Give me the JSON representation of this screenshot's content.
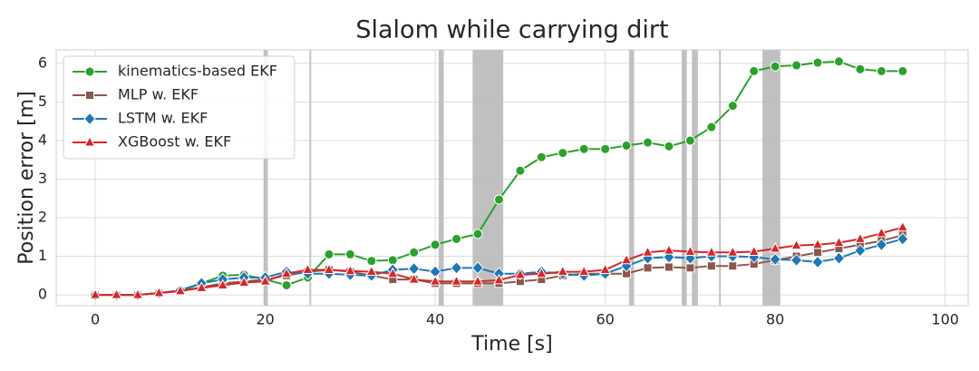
{
  "chart_data": {
    "type": "line",
    "title": "Slalom while carrying dirt",
    "xlabel": "Time [s]",
    "ylabel": "Position error [m]",
    "x": [
      0,
      2.5,
      5,
      7.5,
      10,
      12.5,
      15,
      17.5,
      20,
      22.5,
      25,
      27.5,
      30,
      32.5,
      35,
      37.5,
      40,
      42.5,
      45,
      47.5,
      50,
      52.5,
      55,
      57.5,
      60,
      62.5,
      65,
      67.5,
      70,
      72.5,
      75,
      77.5,
      80,
      82.5,
      85,
      87.5,
      90,
      92.5,
      95
    ],
    "series": [
      {
        "name": "kinematics-based EKF",
        "color": "#2ca02c",
        "marker": "circle",
        "values": [
          0,
          0,
          0,
          0.05,
          0.1,
          0.3,
          0.5,
          0.52,
          0.4,
          0.25,
          0.45,
          1.05,
          1.05,
          0.88,
          0.9,
          1.1,
          1.3,
          1.45,
          1.58,
          2.47,
          3.22,
          3.57,
          3.68,
          3.78,
          3.78,
          3.87,
          3.95,
          3.85,
          4.0,
          4.35,
          4.9,
          5.8,
          5.92,
          5.95,
          6.02,
          6.05,
          5.85,
          5.8,
          5.8
        ]
      },
      {
        "name": "MLP w. EKF",
        "color": "#8c564b",
        "marker": "square",
        "values": [
          0,
          0,
          0,
          0.05,
          0.1,
          0.2,
          0.3,
          0.35,
          0.4,
          0.5,
          0.6,
          0.65,
          0.6,
          0.5,
          0.4,
          0.4,
          0.3,
          0.3,
          0.3,
          0.3,
          0.35,
          0.4,
          0.5,
          0.55,
          0.55,
          0.55,
          0.7,
          0.72,
          0.7,
          0.75,
          0.75,
          0.8,
          0.9,
          1.0,
          1.1,
          1.2,
          1.3,
          1.4,
          1.55
        ]
      },
      {
        "name": "LSTM w. EKF",
        "color": "#1f77b4",
        "marker": "diamond",
        "values": [
          0,
          0,
          0,
          0.05,
          0.12,
          0.3,
          0.4,
          0.45,
          0.45,
          0.6,
          0.55,
          0.55,
          0.52,
          0.5,
          0.65,
          0.68,
          0.6,
          0.7,
          0.7,
          0.55,
          0.55,
          0.6,
          0.55,
          0.5,
          0.55,
          0.75,
          0.95,
          0.98,
          0.95,
          1.0,
          1.0,
          0.98,
          0.92,
          0.9,
          0.85,
          0.95,
          1.15,
          1.3,
          1.45
        ]
      },
      {
        "name": "XGBoost w. EKF",
        "color": "#d62728",
        "marker": "triangle",
        "values": [
          0,
          0,
          0,
          0.05,
          0.1,
          0.18,
          0.25,
          0.32,
          0.35,
          0.55,
          0.65,
          0.65,
          0.62,
          0.6,
          0.55,
          0.4,
          0.35,
          0.35,
          0.35,
          0.38,
          0.52,
          0.55,
          0.6,
          0.6,
          0.65,
          0.9,
          1.1,
          1.15,
          1.12,
          1.1,
          1.1,
          1.12,
          1.2,
          1.28,
          1.3,
          1.35,
          1.45,
          1.6,
          1.75
        ]
      }
    ],
    "spans": [
      [
        19.8,
        20.3
      ],
      [
        25.2,
        25.4
      ],
      [
        40.4,
        41.0
      ],
      [
        44.4,
        48.0
      ],
      [
        62.8,
        63.4
      ],
      [
        69.0,
        69.6
      ],
      [
        70.2,
        70.9
      ],
      [
        73.4,
        73.6
      ],
      [
        78.5,
        80.6
      ]
    ],
    "span_color": "#bdbdbd",
    "xlim": [
      -4.6,
      102.7
    ],
    "ylim": [
      -0.28,
      6.35
    ],
    "xticks": [
      0,
      20,
      40,
      60,
      80,
      100
    ],
    "yticks": [
      0,
      1,
      2,
      3,
      4,
      5,
      6
    ],
    "grid": true,
    "legend": "upper left"
  }
}
